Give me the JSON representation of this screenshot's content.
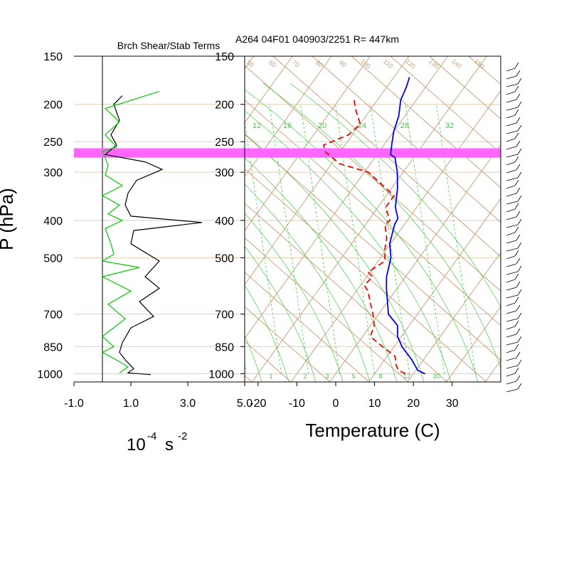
{
  "header": {
    "panel_title": "Brch Shear/Stab Terms",
    "sounding_title": "A264 04F01 040903/2251 R= 447km"
  },
  "labels": {
    "y_axis": "P (hPa)",
    "left_x_units_base": "10",
    "left_x_units_exp": "-4",
    "left_x_units_s": "s",
    "left_x_units_exp2": "-2",
    "right_x_axis": "Temperature (C)"
  },
  "colors": {
    "temperature": "#0000ee",
    "dewpoint": "#ee0000",
    "shear_term": "#000000",
    "stability_term": "#00cc00",
    "isotherm_adiabat": "#c9a27e",
    "mixing_ratio": "#44cc44",
    "highlight_band": "#ff66ff",
    "pressure_gridline": "#e3cdb7"
  },
  "chart_data": [
    {
      "type": "line",
      "title": "Brch Shear/Stab Terms",
      "ylabel": "P (hPa)",
      "xlabel": "10-4 s-2",
      "ylim": [
        1050,
        150
      ],
      "xlim": [
        -1.0,
        5.0
      ],
      "x_ticks": [
        "-1.0",
        "1.0",
        "3.0",
        "5.0"
      ],
      "y_ticks": [
        150,
        200,
        250,
        300,
        400,
        500,
        700,
        850,
        1000
      ],
      "series": [
        {
          "color": "#000000",
          "points": [
            [
              0.7,
              190
            ],
            [
              0.4,
              200
            ],
            [
              0.6,
              220
            ],
            [
              0.3,
              240
            ],
            [
              0.5,
              255
            ],
            [
              0.1,
              270
            ],
            [
              1.5,
              282
            ],
            [
              2.1,
              295
            ],
            [
              1.2,
              315
            ],
            [
              0.9,
              340
            ],
            [
              0.8,
              365
            ],
            [
              1.0,
              390
            ],
            [
              3.5,
              405
            ],
            [
              1.1,
              425
            ],
            [
              1.0,
              460
            ],
            [
              2.0,
              510
            ],
            [
              1.5,
              560
            ],
            [
              2.0,
              600
            ],
            [
              1.3,
              650
            ],
            [
              1.8,
              710
            ],
            [
              1.0,
              760
            ],
            [
              0.7,
              830
            ],
            [
              0.6,
              880
            ],
            [
              0.8,
              920
            ],
            [
              1.1,
              970
            ],
            [
              0.9,
              995
            ],
            [
              1.7,
              1005
            ]
          ]
        },
        {
          "color": "#00cc00",
          "points": [
            [
              2.0,
              185
            ],
            [
              0.1,
              205
            ],
            [
              0.6,
              222
            ],
            [
              0.1,
              240
            ],
            [
              0.5,
              258
            ],
            [
              0.0,
              265
            ],
            [
              0.2,
              288
            ],
            [
              0.1,
              305
            ],
            [
              0.7,
              325
            ],
            [
              0.0,
              345
            ],
            [
              0.6,
              365
            ],
            [
              0.2,
              385
            ],
            [
              0.7,
              400
            ],
            [
              0.1,
              420
            ],
            [
              0.3,
              460
            ],
            [
              0.4,
              490
            ],
            [
              0.0,
              510
            ],
            [
              1.3,
              530
            ],
            [
              0.0,
              560
            ],
            [
              1.0,
              610
            ],
            [
              0.2,
              660
            ],
            [
              0.8,
              720
            ],
            [
              0.0,
              800
            ],
            [
              0.4,
              850
            ],
            [
              0.0,
              880
            ],
            [
              0.6,
              930
            ],
            [
              0.9,
              960
            ],
            [
              0.6,
              995
            ]
          ]
        }
      ],
      "highlight_band_hpa": [
        260,
        275
      ]
    },
    {
      "type": "line",
      "title": "A264 04F01 040903/2251 R= 447km",
      "xlabel": "Temperature (C)",
      "ylabel": "",
      "ylim": [
        1050,
        150
      ],
      "xlim": [
        -23,
        41
      ],
      "x_ticks": [
        -20,
        -10,
        0,
        10,
        20,
        30
      ],
      "y_ticks": [
        150,
        200,
        250,
        300,
        400,
        500,
        700,
        850,
        1000
      ],
      "skew": "skew-T log-P",
      "mixing_ratio_labels": [
        "1",
        "2",
        "3",
        "5",
        "8",
        "12",
        "20"
      ],
      "upper_green_labels": [
        "12",
        "16",
        "20",
        "24",
        "28",
        "32"
      ],
      "isotherm_top_labels": [
        "50",
        "60",
        "70",
        "80",
        "90",
        "100",
        "110",
        "120",
        "130",
        "140",
        "150"
      ],
      "series": [
        {
          "name": "",
          "color": "#0000ee",
          "dash": "solid",
          "points": [
            [
              -36.0,
              170
            ],
            [
              -35.0,
              180
            ],
            [
              -34.0,
              195
            ],
            [
              -31.5,
              215
            ],
            [
              -30.0,
              235
            ],
            [
              -28.0,
              255
            ],
            [
              -26.5,
              270
            ],
            [
              -24.8,
              275
            ],
            [
              -21.5,
              300
            ],
            [
              -18.5,
              330
            ],
            [
              -15.5,
              370
            ],
            [
              -12.8,
              395
            ],
            [
              -12.5,
              410
            ],
            [
              -10.2,
              460
            ],
            [
              -7.3,
              500
            ],
            [
              -4.9,
              560
            ],
            [
              -2.8,
              600
            ],
            [
              2.5,
              700
            ],
            [
              7.0,
              750
            ],
            [
              9.0,
              800
            ],
            [
              12.0,
              850
            ],
            [
              17.0,
              920
            ],
            [
              20.5,
              980
            ],
            [
              23.0,
              1000
            ]
          ]
        },
        {
          "name": "",
          "color": "#ee0000",
          "dash": "dashed",
          "points": [
            [
              -46.0,
              195
            ],
            [
              -43.5,
              208
            ],
            [
              -40.0,
              225
            ],
            [
              -41.0,
              240
            ],
            [
              -45.5,
              255
            ],
            [
              -44.0,
              265
            ],
            [
              -38.0,
              285
            ],
            [
              -29.0,
              300
            ],
            [
              -21.5,
              330
            ],
            [
              -18.0,
              345
            ],
            [
              -18.0,
              370
            ],
            [
              -14.5,
              400
            ],
            [
              -15.0,
              410
            ],
            [
              -12.0,
              445
            ],
            [
              -10.2,
              480
            ],
            [
              -8.2,
              510
            ],
            [
              -10.5,
              545
            ],
            [
              -8.5,
              560
            ],
            [
              -9.0,
              590
            ],
            [
              -7.0,
              610
            ],
            [
              -4.5,
              650
            ],
            [
              -1.5,
              700
            ],
            [
              1.0,
              750
            ],
            [
              2.0,
              800
            ],
            [
              7.0,
              850
            ],
            [
              12.0,
              900
            ],
            [
              14.0,
              950
            ],
            [
              15.5,
              980
            ],
            [
              18.0,
              1000
            ]
          ]
        }
      ],
      "highlight_band_hpa": [
        260,
        275
      ]
    }
  ]
}
